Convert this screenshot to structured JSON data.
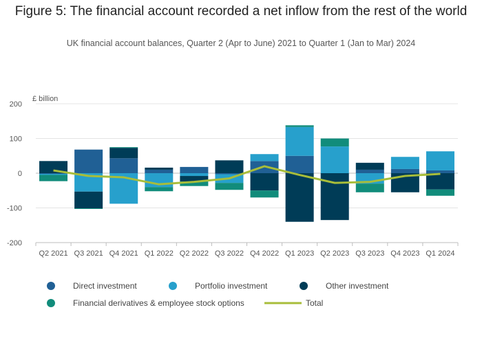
{
  "header": {
    "title": "Figure 5: The financial account recorded a net inflow from the rest of the world",
    "subtitle": "UK financial account balances, Quarter 2 (Apr to June) 2021 to Quarter 1 (Jan to Mar) 2024"
  },
  "chart_data": {
    "type": "bar",
    "stacked": true,
    "title": "Figure 5: The financial account recorded a net inflow from the rest of the world",
    "subtitle": "UK financial account balances, Quarter 2 (Apr to June) 2021 to Quarter 1 (Jan to Mar) 2024",
    "ylabel": "£ billion",
    "xlabel": "",
    "ylim": [
      -200,
      200
    ],
    "yticks": [
      -200,
      -100,
      0,
      100,
      200
    ],
    "grid": true,
    "legend_position": "bottom",
    "categories": [
      "Q2 2021",
      "Q3 2021",
      "Q4 2021",
      "Q1 2022",
      "Q2 2022",
      "Q3 2022",
      "Q4 2022",
      "Q1 2023",
      "Q2 2023",
      "Q3 2023",
      "Q4 2023",
      "Q1 2024"
    ],
    "series": [
      {
        "name": "Direct investment",
        "kind": "bar",
        "color": "#206095",
        "values": [
          -2,
          68,
          43,
          10,
          18,
          -3,
          35,
          50,
          0,
          10,
          12,
          8
        ]
      },
      {
        "name": "Portfolio investment",
        "kind": "bar",
        "color": "#27a0cc",
        "values": [
          -3,
          -53,
          -88,
          -40,
          -8,
          -25,
          20,
          83,
          77,
          -30,
          35,
          55
        ]
      },
      {
        "name": "Other investment",
        "kind": "bar",
        "color": "#003c57",
        "values": [
          35,
          -48,
          30,
          6,
          -16,
          37,
          -50,
          -140,
          -135,
          20,
          -55,
          -47
        ]
      },
      {
        "name": "Financial derivatives & employee stock options",
        "kind": "bar",
        "color": "#118c7b",
        "values": [
          -18,
          -2,
          2,
          -12,
          -13,
          -20,
          -20,
          5,
          23,
          -25,
          0,
          -18
        ]
      },
      {
        "name": "Total",
        "kind": "line",
        "color": "#a8bd3a",
        "values": [
          8,
          -8,
          -12,
          -32,
          -25,
          -15,
          20,
          -5,
          -28,
          -25,
          -8,
          -2
        ]
      }
    ]
  }
}
